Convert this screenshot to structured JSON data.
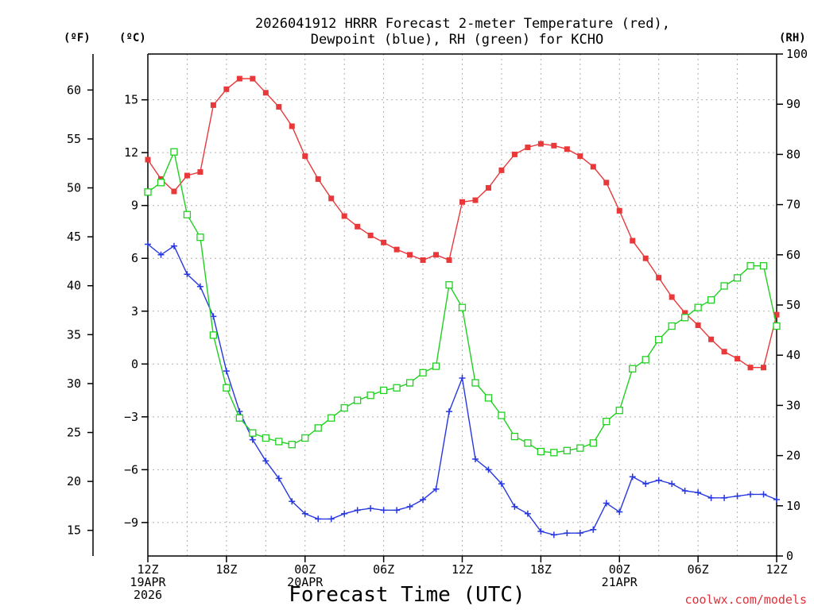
{
  "chart_data": {
    "type": "line",
    "title_line1": "2026041912 HRRR Forecast 2-meter Temperature (red),",
    "title_line2": "Dewpoint (blue), RH (green) for KCHO",
    "xlabel": "Forecast Time (UTC)",
    "credit": "coolwx.com/models",
    "unit_f": "(ºF)",
    "unit_c": "(ºC)",
    "unit_rh": "(RH)",
    "x_hours": [
      0,
      1,
      2,
      3,
      4,
      5,
      6,
      7,
      8,
      9,
      10,
      11,
      12,
      13,
      14,
      15,
      16,
      17,
      18,
      19,
      20,
      21,
      22,
      23,
      24,
      25,
      26,
      27,
      28,
      29,
      30,
      31,
      32,
      33,
      34,
      35,
      36,
      37,
      38,
      39,
      40,
      41,
      42,
      43,
      44,
      45,
      46,
      47,
      48
    ],
    "x_ticks": [
      {
        "h": 0,
        "lines": [
          "12Z",
          "19APR",
          "2026"
        ]
      },
      {
        "h": 6,
        "lines": [
          "18Z"
        ]
      },
      {
        "h": 12,
        "lines": [
          "00Z",
          "20APR"
        ]
      },
      {
        "h": 18,
        "lines": [
          "06Z"
        ]
      },
      {
        "h": 24,
        "lines": [
          "12Z"
        ]
      },
      {
        "h": 30,
        "lines": [
          "18Z"
        ]
      },
      {
        "h": 36,
        "lines": [
          "00Z",
          "21APR"
        ]
      },
      {
        "h": 42,
        "lines": [
          "06Z"
        ]
      },
      {
        "h": 48,
        "lines": [
          "12Z"
        ]
      }
    ],
    "c_axis": {
      "min": -10.9,
      "max": 17.6,
      "ticks": [
        -9,
        -6,
        -3,
        0,
        3,
        6,
        9,
        12,
        15
      ]
    },
    "f_axis": {
      "ticks": [
        15,
        20,
        25,
        30,
        35,
        40,
        45,
        50,
        55,
        60
      ]
    },
    "rh_axis": {
      "min": 0,
      "max": 100,
      "ticks": [
        0,
        10,
        20,
        30,
        40,
        50,
        60,
        70,
        80,
        90,
        100
      ]
    },
    "series": [
      {
        "key": "temp",
        "axis": "c",
        "color": "#e8383a",
        "marker": "filled-square",
        "values": [
          11.6,
          10.5,
          9.8,
          10.7,
          10.9,
          14.7,
          15.6,
          16.2,
          16.2,
          15.4,
          14.6,
          13.5,
          11.8,
          10.5,
          9.4,
          8.4,
          7.8,
          7.3,
          6.9,
          6.5,
          6.2,
          5.9,
          6.2,
          5.9,
          9.2,
          9.3,
          10.0,
          11.0,
          11.9,
          12.3,
          12.5,
          12.4,
          12.2,
          11.8,
          11.2,
          10.3,
          8.7,
          7.0,
          6.0,
          4.9,
          3.8,
          2.9,
          2.2,
          1.4,
          0.7,
          0.3,
          -0.2,
          -0.2,
          2.8
        ]
      },
      {
        "key": "dewpoint",
        "axis": "c",
        "color": "#2838e0",
        "marker": "plus",
        "values": [
          6.8,
          6.2,
          6.7,
          5.1,
          4.4,
          2.7,
          -0.4,
          -2.7,
          -4.3,
          -5.5,
          -6.5,
          -7.8,
          -8.5,
          -8.8,
          -8.8,
          -8.5,
          -8.3,
          -8.2,
          -8.3,
          -8.3,
          -8.1,
          -7.7,
          -7.1,
          -2.7,
          -0.8,
          -5.4,
          -6.0,
          -6.8,
          -8.1,
          -8.5,
          -9.5,
          -9.7,
          -9.6,
          -9.6,
          -9.4,
          -7.9,
          -8.4,
          -6.4,
          -6.8,
          -6.6,
          -6.8,
          -7.2,
          -7.3,
          -7.6,
          -7.6,
          -7.5,
          -7.4,
          -7.4,
          -7.7
        ]
      },
      {
        "key": "rh",
        "axis": "rh",
        "color": "#20d020",
        "marker": "open-square",
        "values": [
          72.5,
          74.4,
          80.5,
          68.0,
          63.5,
          44.0,
          33.5,
          27.5,
          24.5,
          23.5,
          22.8,
          22.2,
          23.5,
          25.5,
          27.5,
          29.5,
          31.0,
          32.0,
          33.0,
          33.5,
          34.5,
          36.5,
          37.8,
          54.0,
          49.5,
          34.5,
          31.5,
          28.0,
          23.8,
          22.5,
          20.8,
          20.6,
          21.0,
          21.5,
          22.5,
          26.8,
          29.0,
          37.3,
          39.1,
          43.1,
          45.8,
          47.5,
          49.5,
          51.0,
          53.8,
          55.4,
          57.8,
          57.8,
          45.8
        ]
      }
    ]
  }
}
